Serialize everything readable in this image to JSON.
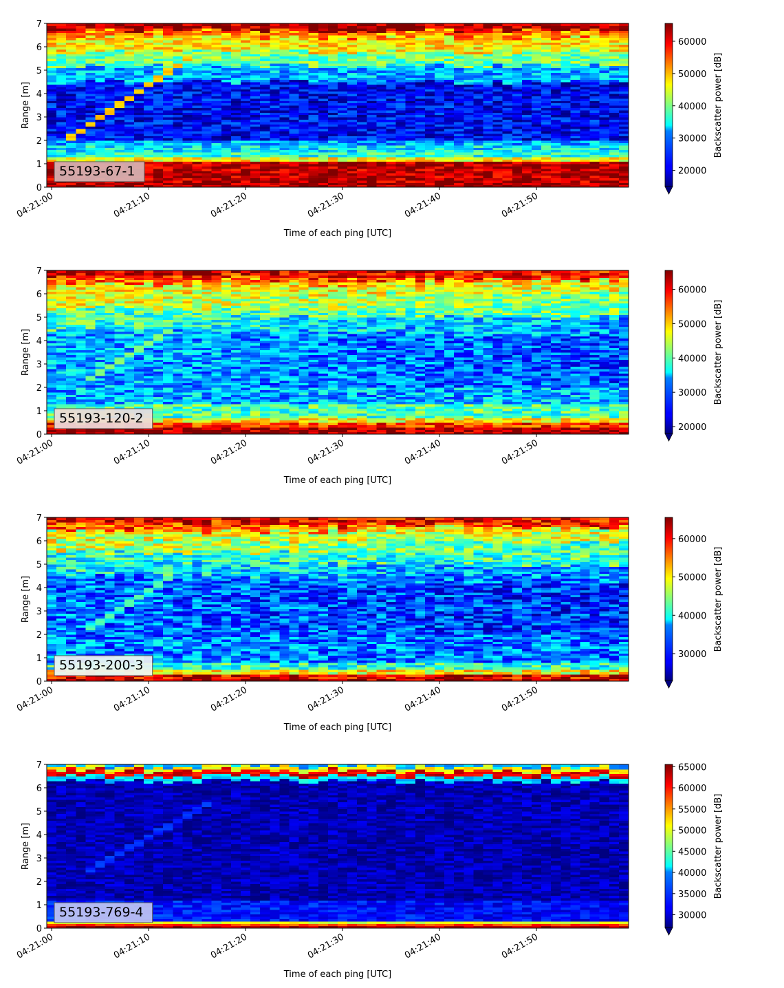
{
  "chart_data": [
    {
      "type": "heatmap",
      "panel_label": "55193-67-1",
      "label_bg": "#d8b4b4",
      "xlabel": "Time of each ping [UTC]",
      "ylabel": "Range [m]",
      "x_ticks": [
        "04:21:00",
        "04:21:10",
        "04:21:20",
        "04:21:30",
        "04:21:40",
        "04:21:50"
      ],
      "x_tick_seconds": [
        0,
        10,
        20,
        30,
        40,
        50
      ],
      "xlim_seconds": [
        -0.5,
        59.5
      ],
      "y_ticks": [
        0,
        1,
        2,
        3,
        4,
        5,
        6,
        7
      ],
      "ylim": [
        0,
        7
      ],
      "colorbar_label": "Backscatter power [dB]",
      "colorbar_ticks": [
        20000,
        30000,
        40000,
        50000,
        60000
      ],
      "colorbar_range": [
        15000,
        65535
      ],
      "colormap": "jet",
      "profile": {
        "near": [
          [
            0,
            0.25,
            0.97
          ],
          [
            0.25,
            1.1,
            0.95
          ],
          [
            1.1,
            1.3,
            0.62
          ],
          [
            1.3,
            1.5,
            0.42
          ],
          [
            1.5,
            1.8,
            0.36
          ],
          [
            1.8,
            2.05,
            0.3
          ],
          [
            2.05,
            4.5,
            0.12
          ],
          [
            4.5,
            5.2,
            0.3
          ],
          [
            5.2,
            5.8,
            0.48
          ],
          [
            5.8,
            6.4,
            0.64
          ],
          [
            6.4,
            6.7,
            0.74
          ],
          [
            6.7,
            7,
            0.95
          ]
        ],
        "far": [
          [
            0,
            0.25,
            0.97
          ],
          [
            0.25,
            1.1,
            0.95
          ],
          [
            1.1,
            1.3,
            0.62
          ],
          [
            1.3,
            1.5,
            0.42
          ],
          [
            1.5,
            1.8,
            0.36
          ],
          [
            1.8,
            2.05,
            0.3
          ],
          [
            2.05,
            4.5,
            0.12
          ],
          [
            4.5,
            5.2,
            0.3
          ],
          [
            5.2,
            5.8,
            0.48
          ],
          [
            5.8,
            6.4,
            0.64
          ],
          [
            6.4,
            6.7,
            0.74
          ],
          [
            6.7,
            7,
            0.95
          ]
        ],
        "noise": 0.12
      },
      "track": {
        "t_start": 1.5,
        "t_end": 14,
        "r_start": 2.0,
        "r_end": 5.5,
        "level": 0.68
      }
    },
    {
      "type": "heatmap",
      "panel_label": "55193-120-2",
      "label_bg": "#ecdcdc",
      "xlabel": "Time of each ping [UTC]",
      "ylabel": "Range [m]",
      "x_ticks": [
        "04:21:00",
        "04:21:10",
        "04:21:20",
        "04:21:30",
        "04:21:40",
        "04:21:50"
      ],
      "x_tick_seconds": [
        0,
        10,
        20,
        30,
        40,
        50
      ],
      "xlim_seconds": [
        -0.5,
        59.5
      ],
      "y_ticks": [
        0,
        1,
        2,
        3,
        4,
        5,
        6,
        7
      ],
      "ylim": [
        0,
        7
      ],
      "colorbar_label": "Backscatter power [dB]",
      "colorbar_ticks": [
        20000,
        30000,
        40000,
        50000,
        60000
      ],
      "colorbar_range": [
        18000,
        65535
      ],
      "colormap": "jet",
      "profile": {
        "near": [
          [
            0,
            0.3,
            0.97
          ],
          [
            0.3,
            0.55,
            0.82
          ],
          [
            0.55,
            0.75,
            0.62
          ],
          [
            0.75,
            1.3,
            0.45
          ],
          [
            1.3,
            2.0,
            0.3
          ],
          [
            2.0,
            4.5,
            0.3
          ],
          [
            4.5,
            5.4,
            0.44
          ],
          [
            5.4,
            6.4,
            0.62
          ],
          [
            6.4,
            6.8,
            0.8
          ],
          [
            6.8,
            7,
            0.96
          ]
        ],
        "far": [
          [
            0,
            0.3,
            0.97
          ],
          [
            0.3,
            0.55,
            0.82
          ],
          [
            0.55,
            0.75,
            0.62
          ],
          [
            0.75,
            1.3,
            0.45
          ],
          [
            1.3,
            2.0,
            0.3
          ],
          [
            2.0,
            4.2,
            0.2
          ],
          [
            4.2,
            5.0,
            0.28
          ],
          [
            5.0,
            6.0,
            0.48
          ],
          [
            6.0,
            6.6,
            0.6
          ],
          [
            6.6,
            7,
            0.86
          ]
        ],
        "noise": 0.14
      },
      "track": {
        "t_start": 4,
        "t_end": 12,
        "r_start": 2.4,
        "r_end": 4.4,
        "level": 0.5
      }
    },
    {
      "type": "heatmap",
      "panel_label": "55193-200-3",
      "label_bg": "#eef3f3",
      "xlabel": "Time of each ping [UTC]",
      "ylabel": "Range [m]",
      "x_ticks": [
        "04:21:00",
        "04:21:10",
        "04:21:20",
        "04:21:30",
        "04:21:40",
        "04:21:50"
      ],
      "x_tick_seconds": [
        0,
        10,
        20,
        30,
        40,
        50
      ],
      "xlim_seconds": [
        -0.5,
        59.5
      ],
      "y_ticks": [
        0,
        1,
        2,
        3,
        4,
        5,
        6,
        7
      ],
      "ylim": [
        0,
        7
      ],
      "colorbar_label": "Backscatter power [dB]",
      "colorbar_ticks": [
        30000,
        40000,
        50000,
        60000
      ],
      "colorbar_range": [
        23000,
        65535
      ],
      "colormap": "jet",
      "profile": {
        "near": [
          [
            0,
            0.15,
            0.97
          ],
          [
            0.15,
            0.35,
            0.9
          ],
          [
            0.35,
            0.5,
            0.62
          ],
          [
            0.5,
            0.85,
            0.42
          ],
          [
            0.85,
            2.0,
            0.26
          ],
          [
            2.0,
            4.5,
            0.24
          ],
          [
            4.5,
            5.5,
            0.4
          ],
          [
            5.5,
            6.4,
            0.58
          ],
          [
            6.4,
            6.8,
            0.8
          ],
          [
            6.8,
            7,
            0.96
          ]
        ],
        "far": [
          [
            0,
            0.15,
            0.97
          ],
          [
            0.15,
            0.35,
            0.9
          ],
          [
            0.35,
            0.5,
            0.62
          ],
          [
            0.5,
            0.85,
            0.42
          ],
          [
            0.85,
            2.0,
            0.24
          ],
          [
            2.0,
            4.2,
            0.16
          ],
          [
            4.2,
            5.0,
            0.26
          ],
          [
            5.0,
            6.0,
            0.44
          ],
          [
            6.0,
            6.6,
            0.58
          ],
          [
            6.6,
            7,
            0.86
          ]
        ],
        "noise": 0.15
      },
      "track": {
        "t_start": 4,
        "t_end": 12,
        "r_start": 2.3,
        "r_end": 4.4,
        "level": 0.45
      }
    },
    {
      "type": "heatmap",
      "panel_label": "55193-769-4",
      "label_bg": "#bfc4f2",
      "xlabel": "Time of each ping [UTC]",
      "ylabel": "Range [m]",
      "x_ticks": [
        "04:21:00",
        "04:21:10",
        "04:21:20",
        "04:21:30",
        "04:21:40",
        "04:21:50"
      ],
      "x_tick_seconds": [
        0,
        10,
        20,
        30,
        40,
        50
      ],
      "xlim_seconds": [
        -0.5,
        59.5
      ],
      "y_ticks": [
        0,
        1,
        2,
        3,
        4,
        5,
        6,
        7
      ],
      "ylim": [
        0,
        7
      ],
      "colorbar_label": "Backscatter power [dB]",
      "colorbar_ticks": [
        30000,
        35000,
        40000,
        45000,
        50000,
        55000,
        60000,
        65000
      ],
      "colorbar_range": [
        27000,
        65535
      ],
      "colormap": "jet",
      "profile": {
        "near": [
          [
            0,
            0.12,
            0.95
          ],
          [
            0.12,
            0.22,
            0.82
          ],
          [
            0.22,
            0.32,
            0.6
          ],
          [
            0.32,
            1.2,
            0.16
          ],
          [
            1.2,
            6.3,
            0.05
          ],
          [
            6.3,
            6.5,
            0.35
          ],
          [
            6.5,
            6.75,
            0.9
          ],
          [
            6.75,
            6.9,
            0.62
          ],
          [
            6.9,
            7,
            0.3
          ]
        ],
        "far": [
          [
            0,
            0.12,
            0.95
          ],
          [
            0.12,
            0.22,
            0.82
          ],
          [
            0.22,
            0.32,
            0.6
          ],
          [
            0.32,
            1.2,
            0.12
          ],
          [
            1.2,
            6.3,
            0.05
          ],
          [
            6.3,
            6.5,
            0.35
          ],
          [
            6.5,
            6.75,
            0.9
          ],
          [
            6.75,
            6.9,
            0.62
          ],
          [
            6.9,
            7,
            0.3
          ]
        ],
        "noise": 0.07
      },
      "track": {
        "t_start": 4,
        "t_end": 16,
        "r_start": 2.5,
        "r_end": 5.3,
        "level": 0.17
      }
    }
  ]
}
